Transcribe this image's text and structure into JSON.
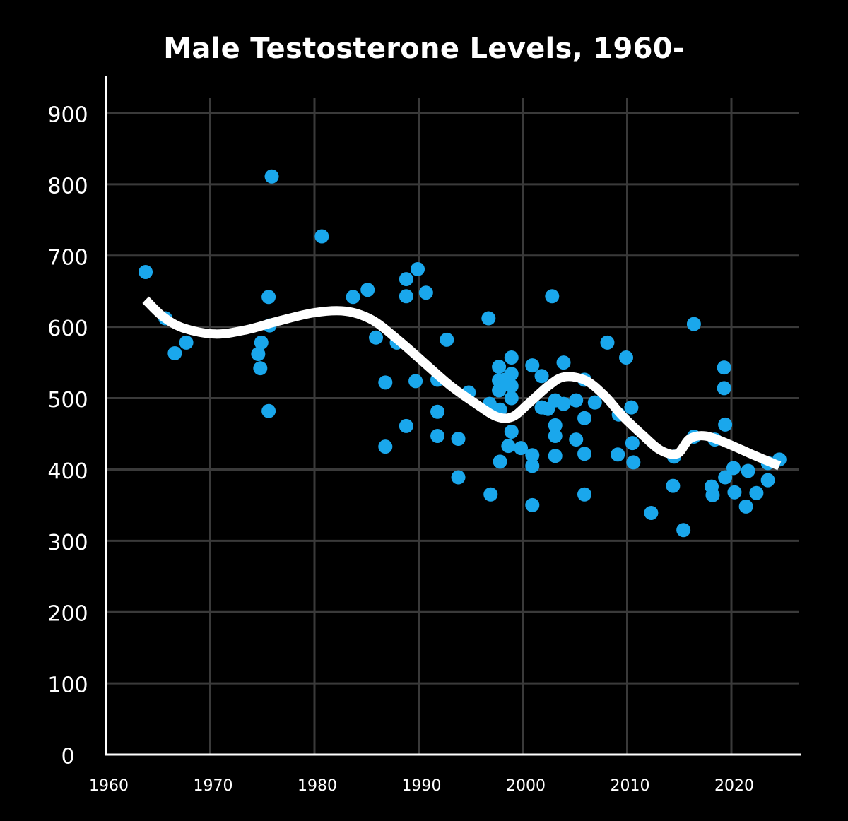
{
  "chart_data": {
    "type": "scatter",
    "title": "Male Testosterone Levels, 1960-",
    "xlabel": "",
    "ylabel": "",
    "xlim": [
      1960,
      2025
    ],
    "ylim": [
      0,
      900
    ],
    "x_ticks": [
      1960,
      1970,
      1980,
      1990,
      2000,
      2010,
      2020
    ],
    "y_ticks": [
      0,
      100,
      200,
      300,
      400,
      500,
      600,
      700,
      800,
      900
    ],
    "grid": true,
    "colors": {
      "points": "#1aa7ec",
      "trend": "#ffffff",
      "grid": "#3a3a3a",
      "background": "#000000"
    },
    "points": [
      [
        1963.8,
        677
      ],
      [
        1965.7,
        612
      ],
      [
        1966.6,
        563
      ],
      [
        1967.7,
        578
      ],
      [
        1974.6,
        562
      ],
      [
        1974.8,
        542
      ],
      [
        1974.9,
        578
      ],
      [
        1975.6,
        642
      ],
      [
        1975.7,
        602
      ],
      [
        1975.6,
        482
      ],
      [
        1975.9,
        811
      ],
      [
        1980.7,
        727
      ],
      [
        1983.7,
        642
      ],
      [
        1985.1,
        652
      ],
      [
        1985.9,
        585
      ],
      [
        1986.8,
        522
      ],
      [
        1986.8,
        432
      ],
      [
        1987.9,
        578
      ],
      [
        1988.8,
        667
      ],
      [
        1988.8,
        643
      ],
      [
        1988.8,
        461
      ],
      [
        1989.7,
        524
      ],
      [
        1989.9,
        681
      ],
      [
        1990.7,
        648
      ],
      [
        1991.8,
        526
      ],
      [
        1991.8,
        481
      ],
      [
        1991.8,
        447
      ],
      [
        1992.7,
        582
      ],
      [
        1993.8,
        443
      ],
      [
        1993.8,
        389
      ],
      [
        1994.8,
        508
      ],
      [
        1996.7,
        612
      ],
      [
        1996.8,
        492
      ],
      [
        1996.9,
        365
      ],
      [
        1997.7,
        544
      ],
      [
        1997.7,
        525
      ],
      [
        1997.7,
        511
      ],
      [
        1997.8,
        484
      ],
      [
        1997.8,
        411
      ],
      [
        1998.3,
        526
      ],
      [
        1998.5,
        520
      ],
      [
        1998.6,
        433
      ],
      [
        1998.9,
        557
      ],
      [
        1998.9,
        534
      ],
      [
        1998.9,
        500
      ],
      [
        1998.9,
        453
      ],
      [
        1998.9,
        517
      ],
      [
        1999.8,
        430
      ],
      [
        2000.9,
        546
      ],
      [
        2000.9,
        420
      ],
      [
        2000.9,
        405
      ],
      [
        2000.9,
        350
      ],
      [
        2001.8,
        531
      ],
      [
        2001.8,
        487
      ],
      [
        2002.4,
        485
      ],
      [
        2002.8,
        643
      ],
      [
        2003.1,
        497
      ],
      [
        2003.1,
        462
      ],
      [
        2003.1,
        447
      ],
      [
        2003.1,
        419
      ],
      [
        2003.9,
        550
      ],
      [
        2003.9,
        492
      ],
      [
        2005.1,
        497
      ],
      [
        2005.1,
        442
      ],
      [
        2005.9,
        526
      ],
      [
        2005.9,
        472
      ],
      [
        2005.9,
        422
      ],
      [
        2005.9,
        365
      ],
      [
        2006.9,
        494
      ],
      [
        2008.1,
        578
      ],
      [
        2009.1,
        421
      ],
      [
        2009.2,
        477
      ],
      [
        2009.9,
        557
      ],
      [
        2010.4,
        487
      ],
      [
        2010.5,
        437
      ],
      [
        2010.6,
        410
      ],
      [
        2012.3,
        339
      ],
      [
        2014.4,
        377
      ],
      [
        2014.5,
        418
      ],
      [
        2015.4,
        315
      ],
      [
        2016.4,
        604
      ],
      [
        2016.4,
        446
      ],
      [
        2018.1,
        376
      ],
      [
        2018.2,
        364
      ],
      [
        2018.4,
        442
      ],
      [
        2019.3,
        543
      ],
      [
        2019.3,
        514
      ],
      [
        2019.4,
        463
      ],
      [
        2019.4,
        389
      ],
      [
        2020.2,
        402
      ],
      [
        2020.3,
        368
      ],
      [
        2021.4,
        348
      ],
      [
        2021.6,
        398
      ],
      [
        2022.4,
        367
      ],
      [
        2023.5,
        385
      ],
      [
        2023.5,
        409
      ],
      [
        2024.6,
        414
      ]
    ],
    "trend": [
      [
        1963.8,
        638
      ],
      [
        1965.5,
        614
      ],
      [
        1967.5,
        598
      ],
      [
        1970.5,
        590
      ],
      [
        1973.5,
        596
      ],
      [
        1976.5,
        608
      ],
      [
        1980,
        620
      ],
      [
        1983,
        622
      ],
      [
        1985.5,
        610
      ],
      [
        1988,
        582
      ],
      [
        1990.5,
        550
      ],
      [
        1993,
        518
      ],
      [
        1995.5,
        492
      ],
      [
        1997.5,
        474
      ],
      [
        1999,
        474
      ],
      [
        2000.5,
        492
      ],
      [
        2002.5,
        518
      ],
      [
        2004,
        530
      ],
      [
        2006,
        525
      ],
      [
        2007.8,
        504
      ],
      [
        2009.5,
        476
      ],
      [
        2011.5,
        448
      ],
      [
        2013.2,
        427
      ],
      [
        2014.8,
        422
      ],
      [
        2016,
        443
      ],
      [
        2017.5,
        447
      ],
      [
        2019.5,
        437
      ],
      [
        2022,
        421
      ],
      [
        2024.6,
        405
      ]
    ]
  }
}
